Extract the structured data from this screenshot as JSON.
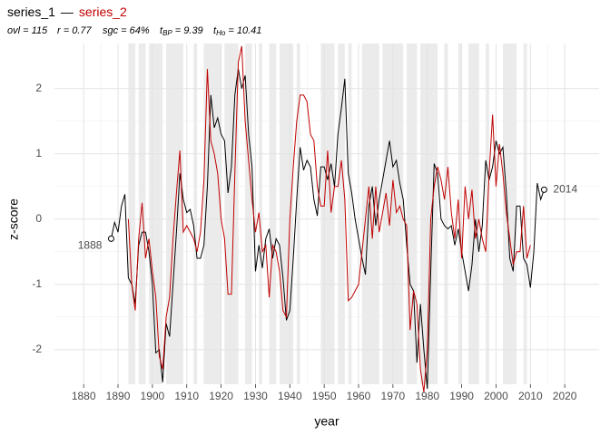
{
  "chart_data": {
    "type": "line",
    "legend_separator": "—",
    "stats": [
      {
        "main": "ovl = 115"
      },
      {
        "main": "r = 0.77"
      },
      {
        "main": "sgc = 64%"
      },
      {
        "main": "t",
        "sub": "BP",
        "rest": " = 9.39"
      },
      {
        "main": "t",
        "sub": "Ho",
        "rest": " = 10.41"
      }
    ],
    "xlabel": "year",
    "ylabel": "z-score",
    "xlim": [
      1871.5,
      2030
    ],
    "ylim": [
      -2.53,
      2.69
    ],
    "xticks": [
      1880,
      1890,
      1900,
      1910,
      1920,
      1930,
      1940,
      1950,
      1960,
      1970,
      1980,
      1990,
      2000,
      2010,
      2020
    ],
    "yticks": [
      -2,
      -1,
      0,
      1,
      2
    ],
    "grid": true,
    "shaded_ranges": [
      [
        1893,
        1895
      ],
      [
        1896,
        1898
      ],
      [
        1899,
        1903
      ],
      [
        1904,
        1909
      ],
      [
        1912,
        1913
      ],
      [
        1915,
        1920
      ],
      [
        1921,
        1925
      ],
      [
        1927,
        1929
      ],
      [
        1931,
        1932
      ],
      [
        1934,
        1936
      ],
      [
        1937,
        1941
      ],
      [
        1942,
        1943
      ],
      [
        1949,
        1953
      ],
      [
        1954,
        1956
      ],
      [
        1957,
        1958
      ],
      [
        1961,
        1966
      ],
      [
        1967,
        1973
      ],
      [
        1974,
        1977
      ],
      [
        1978,
        1983
      ],
      [
        1985,
        1986
      ],
      [
        1989,
        1990
      ],
      [
        1992,
        1995
      ],
      [
        1997,
        1998
      ],
      [
        2002,
        2006
      ],
      [
        2008,
        2009
      ]
    ],
    "shade_color": "#ebebeb",
    "x": [
      1888,
      1889,
      1890,
      1891,
      1892,
      1893,
      1894,
      1895,
      1896,
      1897,
      1898,
      1899,
      1900,
      1901,
      1902,
      1903,
      1904,
      1905,
      1906,
      1907,
      1908,
      1909,
      1910,
      1911,
      1912,
      1913,
      1914,
      1915,
      1916,
      1917,
      1918,
      1919,
      1920,
      1921,
      1922,
      1923,
      1924,
      1925,
      1926,
      1927,
      1928,
      1929,
      1930,
      1931,
      1932,
      1933,
      1934,
      1935,
      1936,
      1937,
      1938,
      1939,
      1940,
      1941,
      1942,
      1943,
      1944,
      1945,
      1946,
      1947,
      1948,
      1949,
      1950,
      1951,
      1952,
      1953,
      1954,
      1955,
      1956,
      1957,
      1958,
      1959,
      1960,
      1961,
      1962,
      1963,
      1964,
      1965,
      1966,
      1967,
      1968,
      1969,
      1970,
      1971,
      1972,
      1973,
      1974,
      1975,
      1976,
      1977,
      1978,
      1979,
      1980,
      1981,
      1982,
      1983,
      1984,
      1985,
      1986,
      1987,
      1988,
      1989,
      1990,
      1991,
      1992,
      1993,
      1994,
      1995,
      1996,
      1997,
      1998,
      1999,
      2000,
      2001,
      2002,
      2003,
      2004,
      2005,
      2006,
      2007,
      2008,
      2009,
      2010,
      2011,
      2012,
      2013,
      2014
    ],
    "series": [
      {
        "name": "series_1",
        "color": "#000000",
        "values": [
          -0.3,
          -0.05,
          -0.2,
          0.2,
          0.38,
          -0.9,
          -1.0,
          -1.3,
          -0.4,
          -0.2,
          -0.2,
          -0.5,
          -1.0,
          -2.05,
          -2.0,
          -2.5,
          -1.6,
          -1.8,
          -1.0,
          -0.2,
          0.7,
          0.3,
          0.1,
          0.15,
          -0.1,
          -0.6,
          -0.6,
          -0.4,
          0.5,
          1.9,
          1.4,
          1.55,
          1.3,
          1.2,
          0.4,
          0.8,
          1.9,
          2.3,
          2.0,
          2.2,
          1.3,
          0.8,
          -0.8,
          -0.4,
          -0.75,
          -0.3,
          -0.15,
          -0.6,
          -0.3,
          -0.4,
          -0.9,
          -1.55,
          -1.4,
          -0.6,
          0.3,
          1.1,
          0.75,
          0.9,
          0.8,
          0.3,
          0.05,
          0.8,
          0.8,
          0.6,
          0.85,
          0.5,
          1.3,
          1.7,
          2.15,
          0.7,
          0.4,
          0.0,
          -0.3,
          -0.6,
          -0.85,
          0.2,
          0.5,
          -0.1,
          0.3,
          0.6,
          0.9,
          1.2,
          0.8,
          0.9,
          0.55,
          0.3,
          -0.4,
          -1.0,
          -1.1,
          -2.2,
          -1.3,
          -2.0,
          -2.6,
          -0.8,
          0.85,
          0.7,
          0.0,
          -0.1,
          -0.15,
          -0.1,
          -0.4,
          -0.15,
          -0.5,
          -0.8,
          -1.1,
          -0.7,
          0.0,
          -0.5,
          -0.1,
          0.9,
          0.6,
          0.8,
          1.2,
          1.0,
          1.1,
          0.4,
          -0.6,
          -0.8,
          0.2,
          0.2,
          -0.6,
          -0.7,
          -1.05,
          -0.5,
          0.55,
          0.3,
          0.45
        ]
      },
      {
        "name": "series_2",
        "color": "#c00000",
        "values": [
          null,
          null,
          null,
          null,
          null,
          0.0,
          -1.0,
          -1.4,
          -0.3,
          0.25,
          -0.6,
          -0.3,
          -0.8,
          -1.2,
          -2.1,
          -2.3,
          -1.5,
          -1.2,
          -0.3,
          0.4,
          1.05,
          -0.2,
          -0.1,
          -0.2,
          -0.3,
          -0.5,
          -0.2,
          0.6,
          2.3,
          1.2,
          1.0,
          0.7,
          0.0,
          -0.3,
          -1.15,
          -1.15,
          0.7,
          2.4,
          2.65,
          1.5,
          0.9,
          0.3,
          -0.2,
          0.1,
          -0.5,
          -0.4,
          -1.2,
          -0.4,
          -0.5,
          -0.8,
          -1.4,
          -1.5,
          0.0,
          0.8,
          1.5,
          1.9,
          1.9,
          1.8,
          1.3,
          1.2,
          0.5,
          0.2,
          0.2,
          1.05,
          0.1,
          0.5,
          0.5,
          0.9,
          0.3,
          -1.25,
          -1.2,
          -1.1,
          -1.0,
          -0.5,
          0.0,
          0.5,
          -0.3,
          0.5,
          -0.2,
          0.1,
          0.4,
          -0.1,
          0.6,
          0.1,
          0.2,
          0.0,
          -0.1,
          -1.7,
          -1.1,
          -1.3,
          -2.3,
          -2.65,
          -2.0,
          0.0,
          0.5,
          0.8,
          0.6,
          0.3,
          0.8,
          0.1,
          -0.3,
          0.3,
          -0.6,
          0.5,
          0.0,
          0.45,
          -0.3,
          0.0,
          -0.3,
          -0.5,
          0.7,
          1.6,
          0.5,
          1.15,
          0.7,
          0.1,
          -0.3,
          -0.7,
          -0.5,
          -0.5,
          0.2,
          -0.6,
          -0.4,
          null,
          null,
          null,
          null
        ]
      }
    ]
  }
}
